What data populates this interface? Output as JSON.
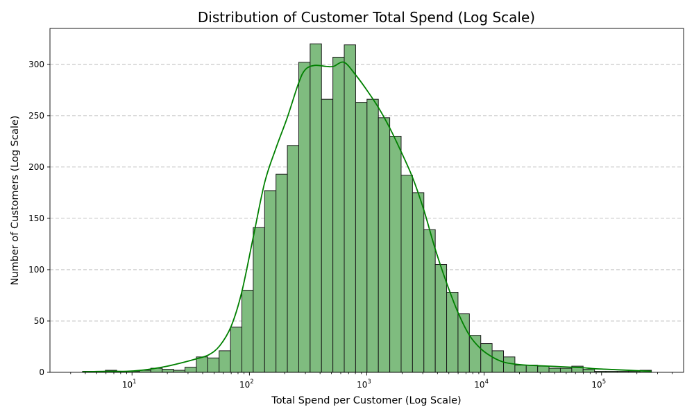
{
  "chart_data": {
    "type": "bar",
    "title": "Distribution of Customer Total Spend (Log Scale)",
    "xlabel": "Total Spend per Customer (Log Scale)",
    "ylabel": "Number of Customers (Log Scale)",
    "x_scale": "log",
    "xlim": [
      2.0,
      500000
    ],
    "ylim": [
      0,
      335
    ],
    "y_ticks": [
      0,
      50,
      100,
      150,
      200,
      250,
      300
    ],
    "x_ticks": [
      {
        "value": 10,
        "base": "10",
        "exp": "1"
      },
      {
        "value": 100,
        "base": "10",
        "exp": "2"
      },
      {
        "value": 1000,
        "base": "10",
        "exp": "3"
      },
      {
        "value": 10000,
        "base": "10",
        "exp": "4"
      },
      {
        "value": 100000,
        "base": "10",
        "exp": "5"
      }
    ],
    "grid": "y-dashed",
    "bar_color": "#7fbc7f",
    "kde_color": "#008000",
    "bin_edges": [
      3.79,
      4.74,
      5.93,
      7.41,
      9.26,
      11.58,
      14.47,
      18.09,
      22.61,
      28.27,
      35.33,
      44.17,
      55.21,
      69.0,
      86.3,
      107.8,
      134.8,
      168.5,
      210.6,
      263.3,
      329.1,
      411.4,
      514.2,
      642.7,
      803.4,
      1004.3,
      1255.4,
      1569.2,
      1961.5,
      2451.9,
      3064.9,
      3831.1,
      4788.9,
      5986.1,
      7482.6,
      9353.3,
      11691.6,
      14614.5,
      18268.1,
      22835.2,
      28544.0,
      35680.0,
      44600.0,
      55750.0,
      69687.0,
      87109.0,
      108886.0,
      136108.0,
      170135.0,
      212669.0,
      265836.0
    ],
    "counts": [
      1,
      1,
      2,
      1,
      1,
      2,
      4,
      3,
      2,
      5,
      15,
      14,
      21,
      44,
      80,
      141,
      177,
      193,
      221,
      302,
      320,
      266,
      307,
      319,
      263,
      266,
      248,
      230,
      192,
      175,
      139,
      105,
      78,
      57,
      36,
      28,
      21,
      15,
      7,
      7,
      6,
      4,
      4,
      6,
      3,
      1,
      1,
      1,
      1,
      2
    ],
    "kde": [
      [
        3.79,
        0.5
      ],
      [
        6,
        1
      ],
      [
        9,
        1
      ],
      [
        12,
        2
      ],
      [
        15,
        3.5
      ],
      [
        20,
        6
      ],
      [
        28,
        10
      ],
      [
        35,
        13
      ],
      [
        45,
        17
      ],
      [
        56,
        26
      ],
      [
        70,
        45
      ],
      [
        86,
        78
      ],
      [
        108,
        132
      ],
      [
        135,
        185
      ],
      [
        168,
        218
      ],
      [
        210,
        248
      ],
      [
        263,
        282
      ],
      [
        300,
        295
      ],
      [
        360,
        299
      ],
      [
        450,
        298
      ],
      [
        520,
        298
      ],
      [
        640,
        302
      ],
      [
        800,
        290
      ],
      [
        1000,
        275
      ],
      [
        1255,
        258
      ],
      [
        1570,
        238
      ],
      [
        1960,
        215
      ],
      [
        2450,
        190
      ],
      [
        3065,
        158
      ],
      [
        3830,
        120
      ],
      [
        4790,
        87
      ],
      [
        6000,
        58
      ],
      [
        7500,
        36
      ],
      [
        9350,
        23
      ],
      [
        11700,
        15
      ],
      [
        14600,
        10
      ],
      [
        18300,
        8
      ],
      [
        22800,
        7
      ],
      [
        28500,
        6.5
      ],
      [
        35700,
        6
      ],
      [
        44600,
        5.5
      ],
      [
        55750,
        5
      ],
      [
        69700,
        4.5
      ],
      [
        87100,
        3.5
      ],
      [
        108900,
        3
      ],
      [
        136100,
        2.5
      ],
      [
        170100,
        2
      ],
      [
        212700,
        1.5
      ],
      [
        265800,
        1
      ]
    ]
  }
}
